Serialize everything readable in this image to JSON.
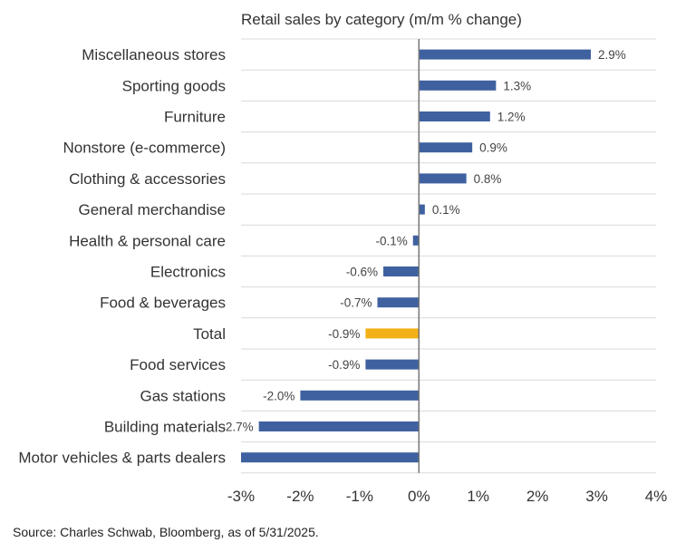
{
  "chart_data": {
    "type": "bar",
    "orientation": "horizontal",
    "title": "Retail sales by category (m/m % change)",
    "categories": [
      "Miscellaneous stores",
      "Sporting goods",
      "Furniture",
      "Nonstore (e-commerce)",
      "Clothing & accessories",
      "General merchandise",
      "Health & personal care",
      "Electronics",
      "Food & beverages",
      "Total",
      "Food services",
      "Gas stations",
      "Building materials",
      "Motor vehicles & parts dealers"
    ],
    "values": [
      2.9,
      1.3,
      1.2,
      0.9,
      0.8,
      0.1,
      -0.1,
      -0.6,
      -0.7,
      -0.9,
      -0.9,
      -2.0,
      -2.7,
      -3.0
    ],
    "data_labels": [
      "2.9%",
      "1.3%",
      "1.2%",
      "0.9%",
      "0.8%",
      "0.1%",
      "-0.1%",
      "-0.6%",
      "-0.7%",
      "-0.9%",
      "-0.9%",
      "-2.0%",
      "-2.7%",
      ""
    ],
    "xlim": [
      -3,
      4
    ],
    "x_ticks": [
      -3,
      -2,
      -1,
      0,
      1,
      2,
      3,
      4
    ],
    "x_tick_labels": [
      "-3%",
      "-2%",
      "-1%",
      "0%",
      "1%",
      "2%",
      "3%",
      "4%"
    ],
    "xlabel": "",
    "ylabel": "",
    "grid": "horizontal",
    "bar_color": "#3f61a0",
    "highlight_category": "Total",
    "highlight_color": "#f2b116",
    "source": "Source: Charles Schwab, Bloomberg, as of 5/31/2025."
  }
}
